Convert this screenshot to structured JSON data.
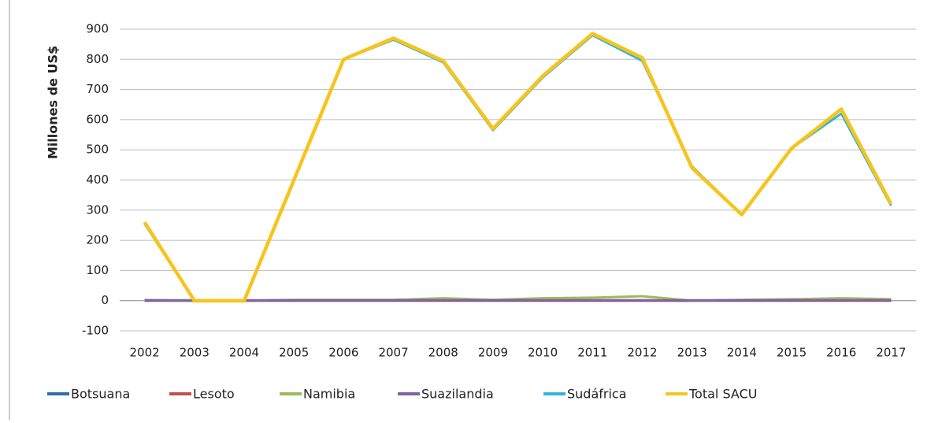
{
  "chart_data": {
    "type": "line",
    "y_label": "Millones de US$",
    "categories": [
      "2002",
      "2003",
      "2004",
      "2005",
      "2006",
      "2007",
      "2008",
      "2009",
      "2010",
      "2011",
      "2012",
      "2013",
      "2014",
      "2015",
      "2016",
      "2017"
    ],
    "series": [
      {
        "name": "Botsuana",
        "color": "#2f6eaa",
        "values": [
          1,
          0,
          0,
          1,
          1,
          1,
          1,
          1,
          1,
          1,
          1,
          0,
          1,
          1,
          1,
          1
        ]
      },
      {
        "name": "Lesoto",
        "color": "#c0504d",
        "values": [
          0,
          0,
          0,
          0,
          0,
          0,
          0,
          0,
          0,
          0,
          0,
          0,
          0,
          0,
          0,
          0
        ]
      },
      {
        "name": "Namibia",
        "color": "#9bbb59",
        "values": [
          2,
          0,
          0,
          3,
          3,
          3,
          8,
          3,
          8,
          10,
          15,
          0,
          3,
          5,
          8,
          5
        ]
      },
      {
        "name": "Suazilandia",
        "color": "#7f62a3",
        "values": [
          1,
          1,
          1,
          1,
          1,
          1,
          1,
          1,
          1,
          1,
          1,
          1,
          1,
          1,
          1,
          1
        ]
      },
      {
        "name": "Sudáfrica",
        "color": "#2fb5d8",
        "values": [
          255,
          0,
          0,
          400,
          800,
          865,
          790,
          565,
          740,
          880,
          795,
          445,
          285,
          505,
          620,
          315
        ]
      },
      {
        "name": "Total SACU",
        "color": "#f7c41c",
        "values": [
          260,
          0,
          0,
          400,
          800,
          870,
          795,
          570,
          745,
          885,
          805,
          440,
          285,
          505,
          635,
          320
        ]
      }
    ],
    "ylim": [
      -100,
      900
    ],
    "yticks": [
      -100,
      0,
      100,
      200,
      300,
      400,
      500,
      600,
      700,
      800,
      900
    ],
    "grid": true
  }
}
